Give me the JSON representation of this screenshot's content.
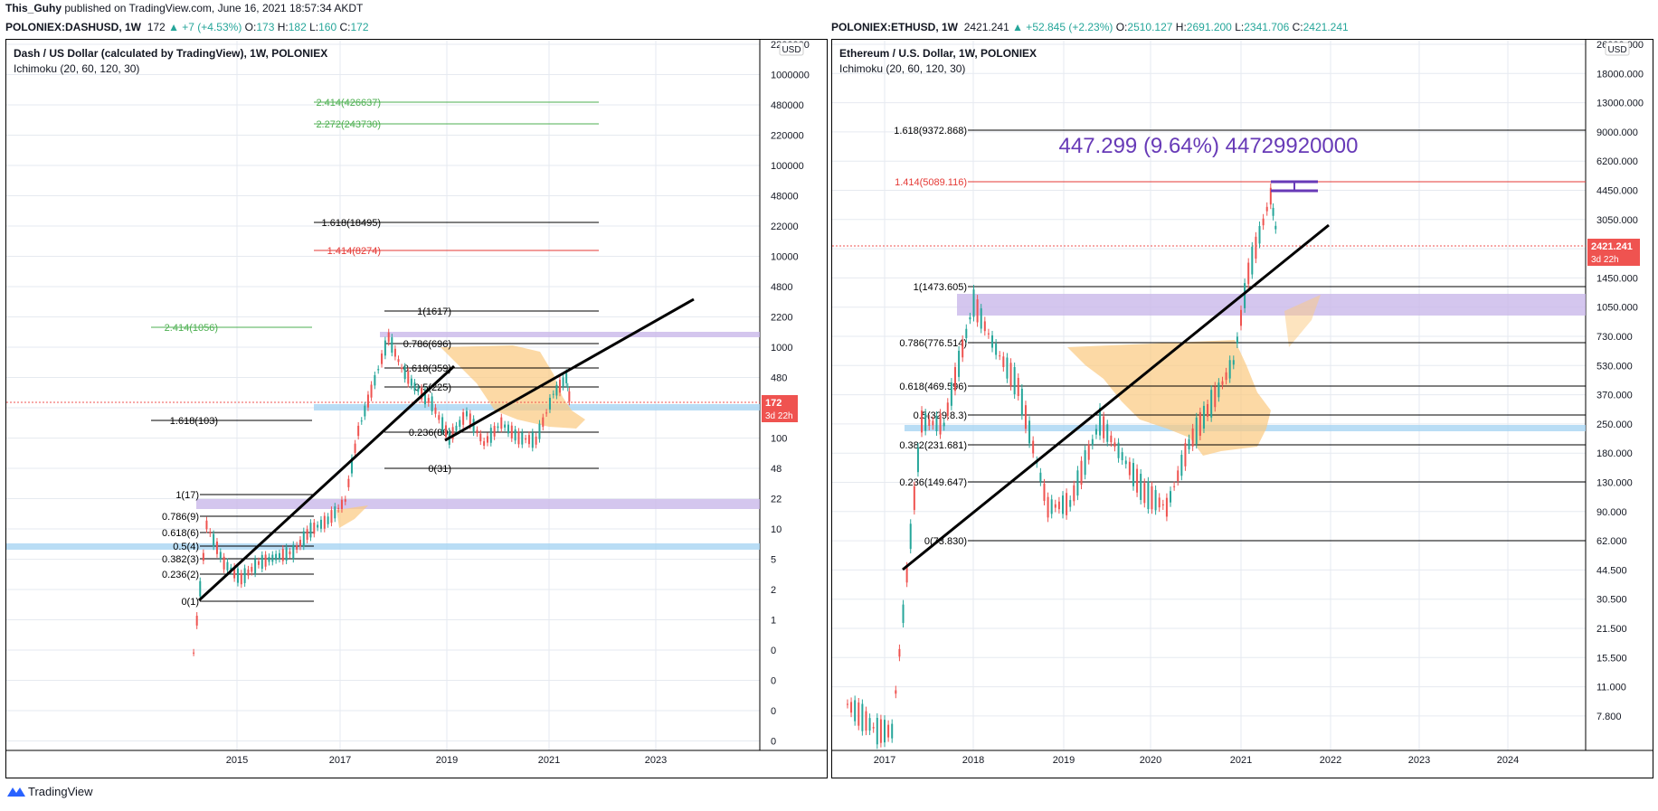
{
  "header": {
    "author": "This_Guhy",
    "published_text": "published on TradingView.com, June 16, 2021 18:57:34 AKDT"
  },
  "footer": {
    "brand": "TradingView"
  },
  "left_quote": {
    "symbol": "POLONIEX:DASHUSD, 1W",
    "last": "172",
    "change": "▲ +7 (+4.53%)",
    "o_label": "O:",
    "o": "173",
    "h_label": "H:",
    "h": "182",
    "l_label": "L:",
    "l": "160",
    "c_label": "C:",
    "c": "172"
  },
  "right_quote": {
    "symbol": "POLONIEX:ETHUSD, 1W",
    "last": "2421.241",
    "change": "▲ +52.845 (+2.23%)",
    "o_label": "O:",
    "o": "2510.127",
    "h_label": "H:",
    "h": "2691.200",
    "l_label": "L:",
    "l": "2341.706",
    "c_label": "C:",
    "c": "2421.241"
  },
  "colors": {
    "up": "#26a69a",
    "down": "#ef5350",
    "cloud": "#fbc97f",
    "fib": "#000000",
    "fib_red": "#e53935",
    "fib_green": "#4caf50",
    "trend": "#000000",
    "zone_purple": "#c9b8ea",
    "zone_blue": "#a8d4f2",
    "price_tag": "#ef5350",
    "measure": "#673ab7",
    "grid": "#e6eaf0"
  },
  "chart_data": [
    {
      "type": "candlestick",
      "pane": "left",
      "title": "Dash / US Dollar (calculated by TradingView), 1W, POLONIEX",
      "subtitle": "Ichimoku (20, 60, 120, 30)",
      "currency": "USD",
      "y_scale": "log",
      "y_ticks": [
        "2200000",
        "1000000",
        "480000",
        "220000",
        "100000",
        "48000",
        "22000",
        "10000",
        "4800",
        "2200",
        "1000",
        "480",
        "220",
        "100",
        "48",
        "22",
        "10",
        "5",
        "2",
        "1",
        "0",
        "0",
        "0",
        "0"
      ],
      "x_ticks": [
        "2015",
        "2017",
        "2019",
        "2021",
        "2023"
      ],
      "last_price": "172",
      "countdown": "3d 22h",
      "fib_levels_upper": [
        {
          "label": "2.414(426637)",
          "color": "green"
        },
        {
          "label": "2.272(243730)",
          "color": "green"
        },
        {
          "label": "1.618(18495)",
          "color": "black"
        },
        {
          "label": "1.414(8274)",
          "color": "red"
        },
        {
          "label": "2.414(1056)",
          "color": "green"
        },
        {
          "label": "1(1617)",
          "color": "black"
        },
        {
          "label": "0.786(696)",
          "color": "black"
        },
        {
          "label": "0.618(359)",
          "color": "black"
        },
        {
          "label": "0.5(225)",
          "color": "black"
        },
        {
          "label": "1.618(103)",
          "color": "black"
        },
        {
          "label": "0.236(80)",
          "color": "black"
        },
        {
          "label": "0(31)",
          "color": "black"
        }
      ],
      "fib_levels_lower": [
        {
          "label": "1(17)"
        },
        {
          "label": "0.786(9)"
        },
        {
          "label": "0.618(6)"
        },
        {
          "label": "0.5(4)"
        },
        {
          "label": "0.382(3)"
        },
        {
          "label": "0.236(2)"
        },
        {
          "label": "0(1)"
        }
      ],
      "series": [
        {
          "name": "Weekly close (approx.)",
          "x": [
            "2014-03",
            "2014-06",
            "2014-10",
            "2015-02",
            "2015-06",
            "2015-10",
            "2016-02",
            "2016-06",
            "2016-10",
            "2017-02",
            "2017-05",
            "2017-08",
            "2017-12",
            "2018-03",
            "2018-06",
            "2018-10",
            "2019-02",
            "2019-06",
            "2019-10",
            "2020-02",
            "2020-06",
            "2020-10",
            "2021-02",
            "2021-05",
            "2021-06"
          ],
          "values": [
            0.3,
            8,
            3,
            2,
            3,
            3.5,
            4,
            7,
            9,
            15,
            90,
            250,
            1000,
            450,
            280,
            180,
            75,
            140,
            65,
            110,
            75,
            70,
            230,
            350,
            172
          ]
        }
      ]
    },
    {
      "type": "candlestick",
      "pane": "right",
      "title": "Ethereum / U.S. Dollar, 1W, POLONIEX",
      "subtitle": "Ichimoku (20, 60, 120, 30)",
      "currency": "USD",
      "y_scale": "log",
      "y_ticks": [
        "26000.000",
        "18000.000",
        "13000.000",
        "9000.000",
        "6200.000",
        "4450.000",
        "3050.000",
        "2100.000",
        "1450.000",
        "1050.000",
        "730.000",
        "530.000",
        "370.000",
        "250.000",
        "180.000",
        "130.000",
        "90.000",
        "62.000",
        "44.500",
        "30.500",
        "21.500",
        "15.500",
        "11.000",
        "7.800"
      ],
      "x_ticks": [
        "2017",
        "2018",
        "2019",
        "2020",
        "2021",
        "2022",
        "2023",
        "2024"
      ],
      "last_price": "2421.241",
      "countdown": "3d 22h",
      "measure_label": "447.299 (9.64%) 44729920000",
      "fib_levels": [
        {
          "label": "1.618(9372.868)",
          "color": "black"
        },
        {
          "label": "1.414(5089.116)",
          "color": "red"
        },
        {
          "label": "1(1473.605)",
          "color": "black"
        },
        {
          "label": "0.786(776.514)",
          "color": "black"
        },
        {
          "label": "0.618(469.596)",
          "color": "black"
        },
        {
          "label": "0.5(329.8.3)",
          "color": "black"
        },
        {
          "label": "0.382(231.681)",
          "color": "black"
        },
        {
          "label": "0.236(149.647)",
          "color": "black"
        },
        {
          "label": "0(73.830)",
          "color": "black"
        }
      ],
      "series": [
        {
          "name": "Weekly close (approx.)",
          "x": [
            "2016-08",
            "2016-12",
            "2017-02",
            "2017-04",
            "2017-06",
            "2017-09",
            "2018-01",
            "2018-04",
            "2018-07",
            "2018-11",
            "2019-02",
            "2019-06",
            "2019-09",
            "2019-12",
            "2020-03",
            "2020-06",
            "2020-09",
            "2020-12",
            "2021-02",
            "2021-05",
            "2021-06"
          ],
          "values": [
            11,
            8,
            8,
            50,
            300,
            290,
            1200,
            700,
            450,
            110,
            115,
            300,
            200,
            130,
            110,
            230,
            370,
            600,
            1700,
            4200,
            2421
          ]
        }
      ]
    }
  ]
}
